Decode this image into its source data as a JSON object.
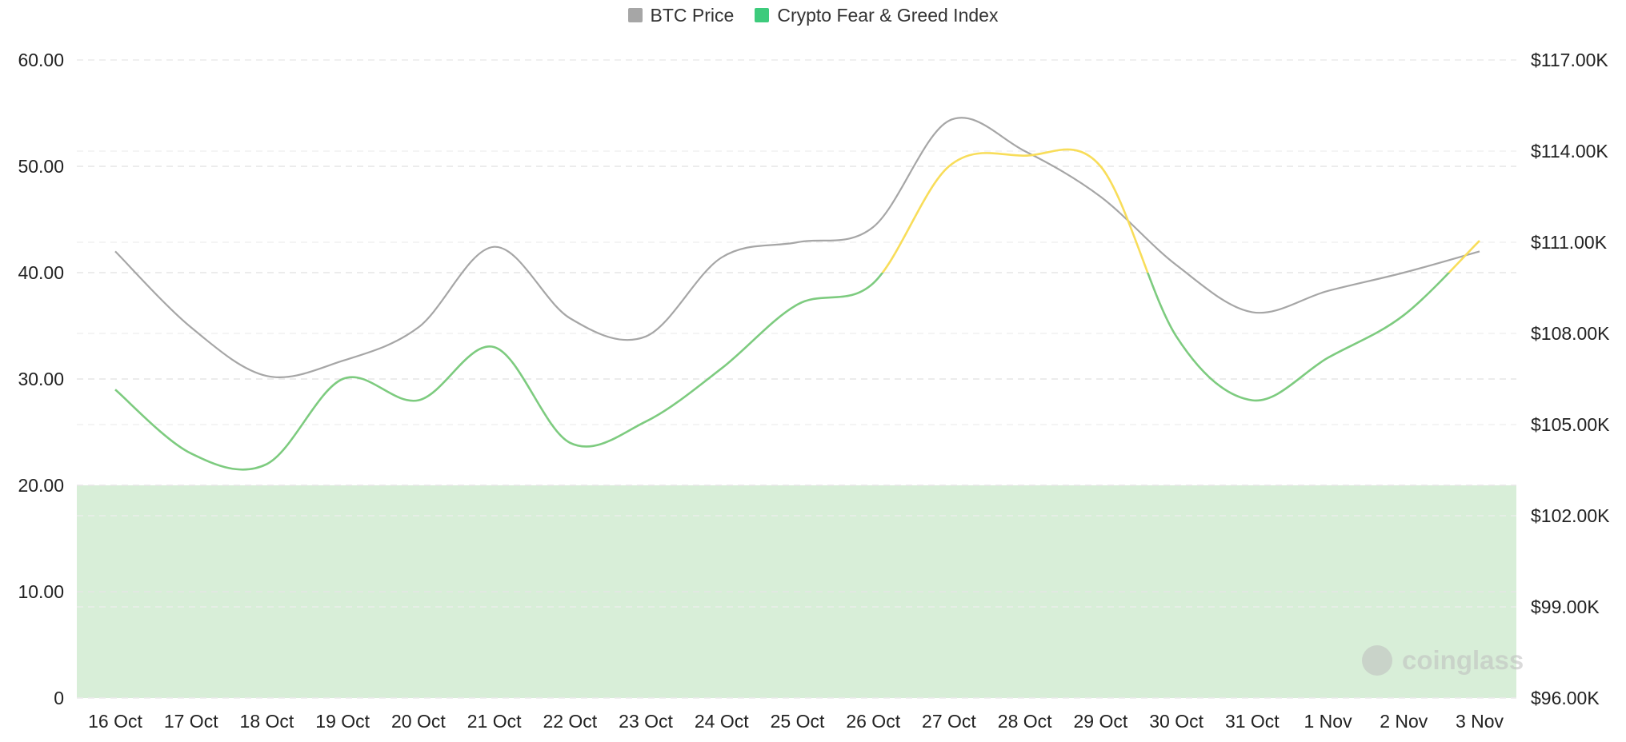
{
  "legend": {
    "items": [
      {
        "label": "BTC Price",
        "color": "#A6A6A6"
      },
      {
        "label": "Crypto Fear & Greed Index",
        "color": "#3DCB7C"
      }
    ]
  },
  "watermark": {
    "text": "coinglass"
  },
  "chart_data": {
    "type": "line",
    "categories": [
      "16 Oct",
      "17 Oct",
      "18 Oct",
      "19 Oct",
      "20 Oct",
      "21 Oct",
      "22 Oct",
      "23 Oct",
      "24 Oct",
      "25 Oct",
      "26 Oct",
      "27 Oct",
      "28 Oct",
      "29 Oct",
      "30 Oct",
      "31 Oct",
      "1 Nov",
      "2 Nov",
      "3 Nov"
    ],
    "left_axis": {
      "ylim": [
        0,
        60
      ],
      "ticks": [
        0,
        10,
        20,
        30,
        40,
        50,
        60
      ],
      "tick_labels": [
        "0",
        "10.00",
        "20.00",
        "30.00",
        "40.00",
        "50.00",
        "60.00"
      ]
    },
    "right_axis": {
      "ylim": [
        96000,
        117000
      ],
      "ticks": [
        96000,
        99000,
        102000,
        105000,
        108000,
        111000,
        114000,
        117000
      ],
      "tick_labels": [
        "$96.00K",
        "$99.00K",
        "$102.00K",
        "$105.00K",
        "$108.00K",
        "$111.00K",
        "$114.00K",
        "$117.00K"
      ]
    },
    "fear_band": {
      "from": 0,
      "to": 20,
      "color": "#D8EED8"
    },
    "series": [
      {
        "name": "BTC Price",
        "axis": "right",
        "color": "#A6A6A6",
        "values": [
          110700,
          108200,
          106600,
          107100,
          108200,
          110850,
          108500,
          107900,
          110500,
          111000,
          111500,
          115000,
          114000,
          112500,
          110250,
          108700,
          109400,
          110000,
          110700
        ]
      },
      {
        "name": "Crypto Fear & Greed Index",
        "axis": "left",
        "values": [
          29,
          23,
          22,
          30,
          28,
          33,
          24,
          26,
          31,
          37,
          39,
          50,
          51,
          50,
          34,
          28,
          32,
          36,
          43
        ],
        "segment_colors": {
          "fear": "#7DCB7F",
          "neutral": "#F8DD5A"
        },
        "neutral_threshold": 40
      }
    ],
    "grid": true,
    "grid_style": "dashed"
  }
}
